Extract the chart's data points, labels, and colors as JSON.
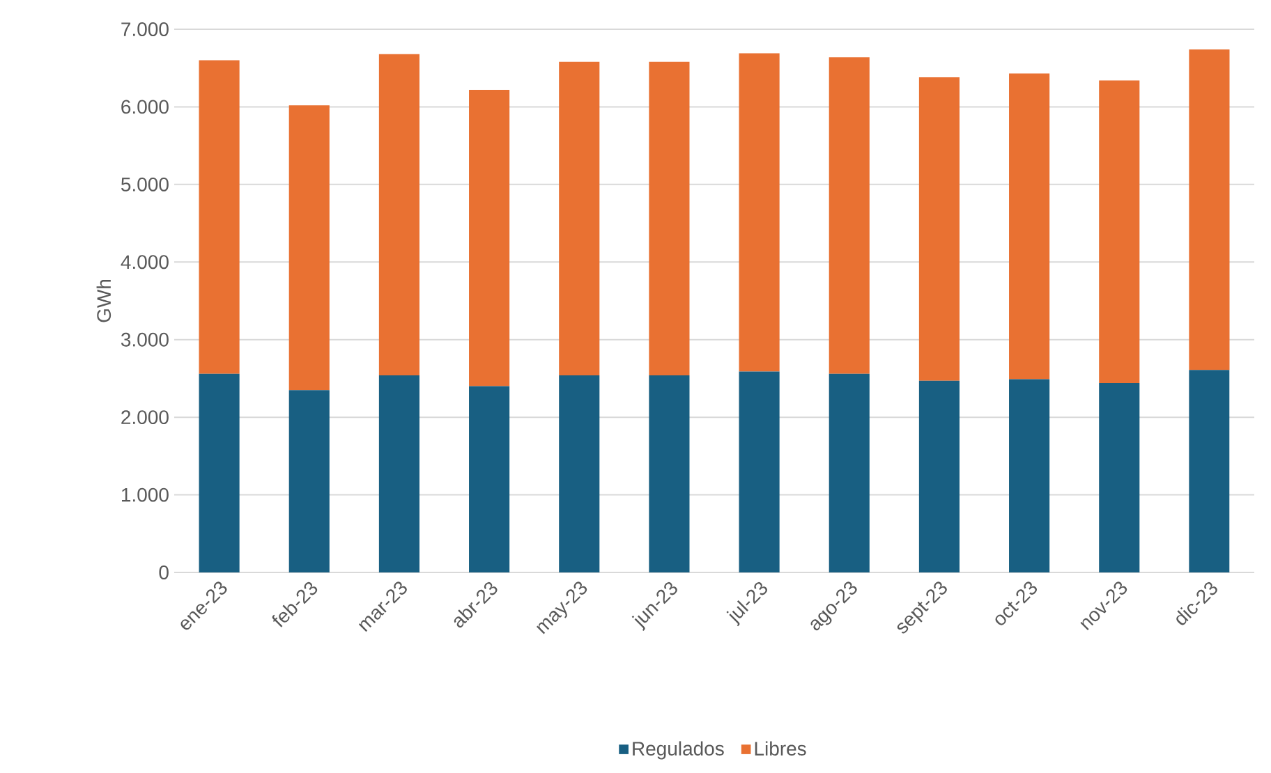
{
  "chart_data": {
    "type": "bar",
    "stacked": true,
    "ylabel": "GWh",
    "categories": [
      "ene-23",
      "feb-23",
      "mar-23",
      "abr-23",
      "may-23",
      "jun-23",
      "jul-23",
      "ago-23",
      "sept-23",
      "oct-23",
      "nov-23",
      "dic-23"
    ],
    "series": [
      {
        "name": "Regulados",
        "color": "#185f82",
        "values": [
          2560,
          2350,
          2540,
          2400,
          2540,
          2540,
          2590,
          2560,
          2470,
          2490,
          2440,
          2610
        ]
      },
      {
        "name": "Libres",
        "color": "#e97132",
        "values": [
          4040,
          3670,
          4140,
          3820,
          4040,
          4040,
          4100,
          4080,
          3910,
          3940,
          3900,
          4130
        ]
      }
    ],
    "ylim": [
      0,
      7000
    ],
    "yticks": [
      0,
      {
        "value": 1000,
        "label": "1.000"
      },
      {
        "value": 2000,
        "label": "2.000"
      },
      {
        "value": 3000,
        "label": "3.000"
      },
      {
        "value": 4000,
        "label": "4.000"
      },
      {
        "value": 5000,
        "label": "5.000"
      },
      {
        "value": 6000,
        "label": "6.000"
      },
      {
        "value": 7000,
        "label": "7.000"
      }
    ],
    "grid": "y",
    "legend": "bottom"
  }
}
